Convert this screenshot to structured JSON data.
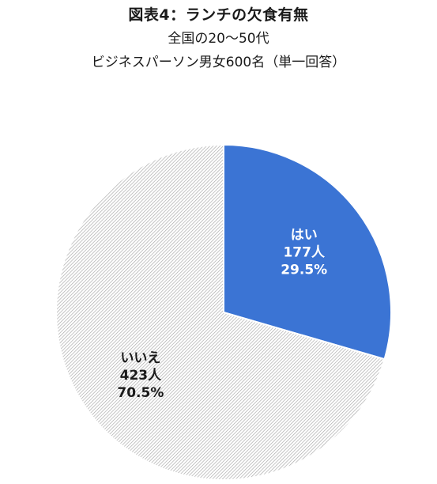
{
  "header": {
    "title": "図表4：ランチの欠食有無",
    "subtitle_1": "全国の20～50代",
    "subtitle_2": "ビジネスパーソン男女600名（単一回答）"
  },
  "chart_data": {
    "type": "pie",
    "title": "図表4：ランチの欠食有無",
    "subtitle": [
      "全国の20～50代",
      "ビジネスパーソン男女600名（単一回答）"
    ],
    "total": 600,
    "start_angle_deg": 0,
    "direction": "clockwise",
    "legend": "none",
    "slices": [
      {
        "label": "はい",
        "count_label": "177人",
        "percent_label": "29.5%",
        "count": 177,
        "percent": 29.5,
        "color": "#3b74d4"
      },
      {
        "label": "いいえ",
        "count_label": "423人",
        "percent_label": "70.5%",
        "count": 423,
        "percent": 70.5,
        "color": "#d9d9d9"
      }
    ]
  },
  "colors": {
    "yes_fill": "#3b74d4",
    "yes_text": "#ffffff",
    "no_hatch": "#a6a6a6",
    "no_base": "#ffffff",
    "no_text": "#1a1a1a",
    "divider": "#ffffff"
  }
}
